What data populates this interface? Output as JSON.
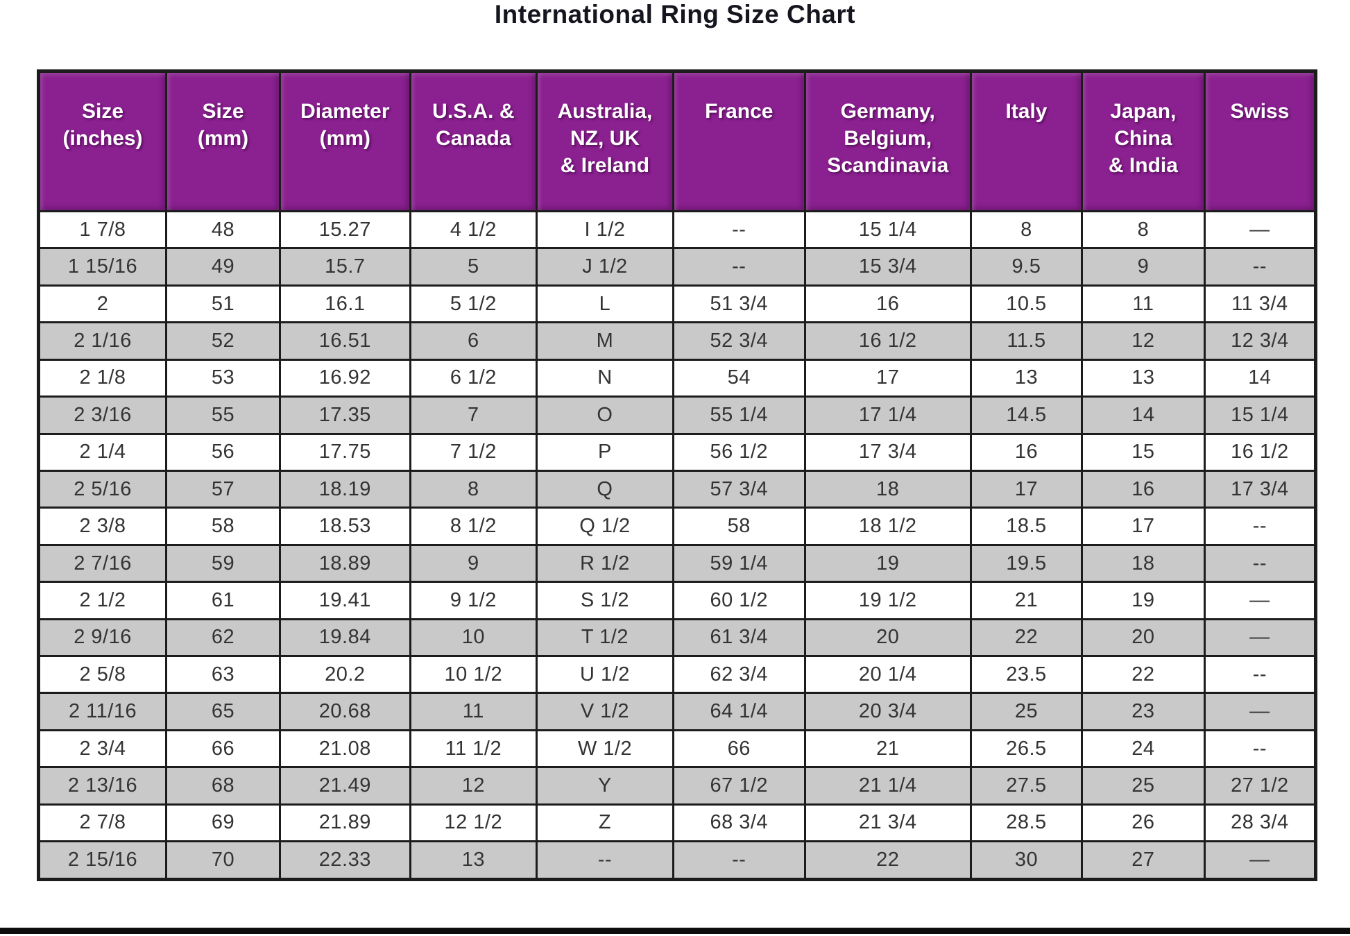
{
  "title": "International Ring Size Chart",
  "colors": {
    "header_bg": "#8B2090",
    "header_text": "#FFFFFF",
    "row_bg": "#FFFFFF",
    "row_alt_bg": "#C9C9C9",
    "border": "#1C1C1C",
    "cell_text": "#333333",
    "title_text": "#15151F"
  },
  "chart_data": {
    "type": "table",
    "title": "International Ring Size Chart",
    "grid": "on",
    "columns": [
      {
        "label": "Size\n(inches)",
        "width_pct": 10.0
      },
      {
        "label": "Size\n(mm)",
        "width_pct": 8.9
      },
      {
        "label": "Diameter\n(mm)",
        "width_pct": 10.2
      },
      {
        "label": "U.S.A. &\nCanada",
        "width_pct": 9.9
      },
      {
        "label": "Australia,\nNZ, UK\n& Ireland",
        "width_pct": 10.7
      },
      {
        "label": "France",
        "width_pct": 10.3
      },
      {
        "label": "Germany,\nBelgium,\nScandinavia",
        "width_pct": 13.0
      },
      {
        "label": "Italy",
        "width_pct": 8.7
      },
      {
        "label": "Japan,\nChina\n& India",
        "width_pct": 9.6
      },
      {
        "label": "Swiss",
        "width_pct": 8.7
      }
    ],
    "rows": [
      [
        "1 7/8",
        "48",
        "15.27",
        "4 1/2",
        "I 1/2",
        "--",
        "15 1/4",
        "8",
        "8",
        "—"
      ],
      [
        "1 15/16",
        "49",
        "15.7",
        "5",
        "J 1/2",
        "--",
        "15 3/4",
        "9.5",
        "9",
        "--"
      ],
      [
        "2",
        "51",
        "16.1",
        "5 1/2",
        "L",
        "51 3/4",
        "16",
        "10.5",
        "11",
        "11 3/4"
      ],
      [
        "2 1/16",
        "52",
        "16.51",
        "6",
        "M",
        "52 3/4",
        "16 1/2",
        "11.5",
        "12",
        "12 3/4"
      ],
      [
        "2 1/8",
        "53",
        "16.92",
        "6 1/2",
        "N",
        "54",
        "17",
        "13",
        "13",
        "14"
      ],
      [
        "2 3/16",
        "55",
        "17.35",
        "7",
        "O",
        "55 1/4",
        "17 1/4",
        "14.5",
        "14",
        "15 1/4"
      ],
      [
        "2 1/4",
        "56",
        "17.75",
        "7 1/2",
        "P",
        "56 1/2",
        "17 3/4",
        "16",
        "15",
        "16 1/2"
      ],
      [
        "2 5/16",
        "57",
        "18.19",
        "8",
        "Q",
        "57 3/4",
        "18",
        "17",
        "16",
        "17 3/4"
      ],
      [
        "2 3/8",
        "58",
        "18.53",
        "8 1/2",
        "Q 1/2",
        "58",
        "18 1/2",
        "18.5",
        "17",
        "--"
      ],
      [
        "2 7/16",
        "59",
        "18.89",
        "9",
        "R 1/2",
        "59 1/4",
        "19",
        "19.5",
        "18",
        "--"
      ],
      [
        "2 1/2",
        "61",
        "19.41",
        "9 1/2",
        "S 1/2",
        "60 1/2",
        "19 1/2",
        "21",
        "19",
        "—"
      ],
      [
        "2 9/16",
        "62",
        "19.84",
        "10",
        "T 1/2",
        "61 3/4",
        "20",
        "22",
        "20",
        "—"
      ],
      [
        "2 5/8",
        "63",
        "20.2",
        "10 1/2",
        "U 1/2",
        "62 3/4",
        "20 1/4",
        "23.5",
        "22",
        "--"
      ],
      [
        "2 11/16",
        "65",
        "20.68",
        "11",
        "V 1/2",
        "64 1/4",
        "20 3/4",
        "25",
        "23",
        "—"
      ],
      [
        "2 3/4",
        "66",
        "21.08",
        "11 1/2",
        "W 1/2",
        "66",
        "21",
        "26.5",
        "24",
        "--"
      ],
      [
        "2 13/16",
        "68",
        "21.49",
        "12",
        "Y",
        "67 1/2",
        "21 1/4",
        "27.5",
        "25",
        "27 1/2"
      ],
      [
        "2 7/8",
        "69",
        "21.89",
        "12 1/2",
        "Z",
        "68 3/4",
        "21 3/4",
        "28.5",
        "26",
        "28 3/4"
      ],
      [
        "2 15/16",
        "70",
        "22.33",
        "13",
        "--",
        "--",
        "22",
        "30",
        "27",
        "—"
      ]
    ]
  }
}
